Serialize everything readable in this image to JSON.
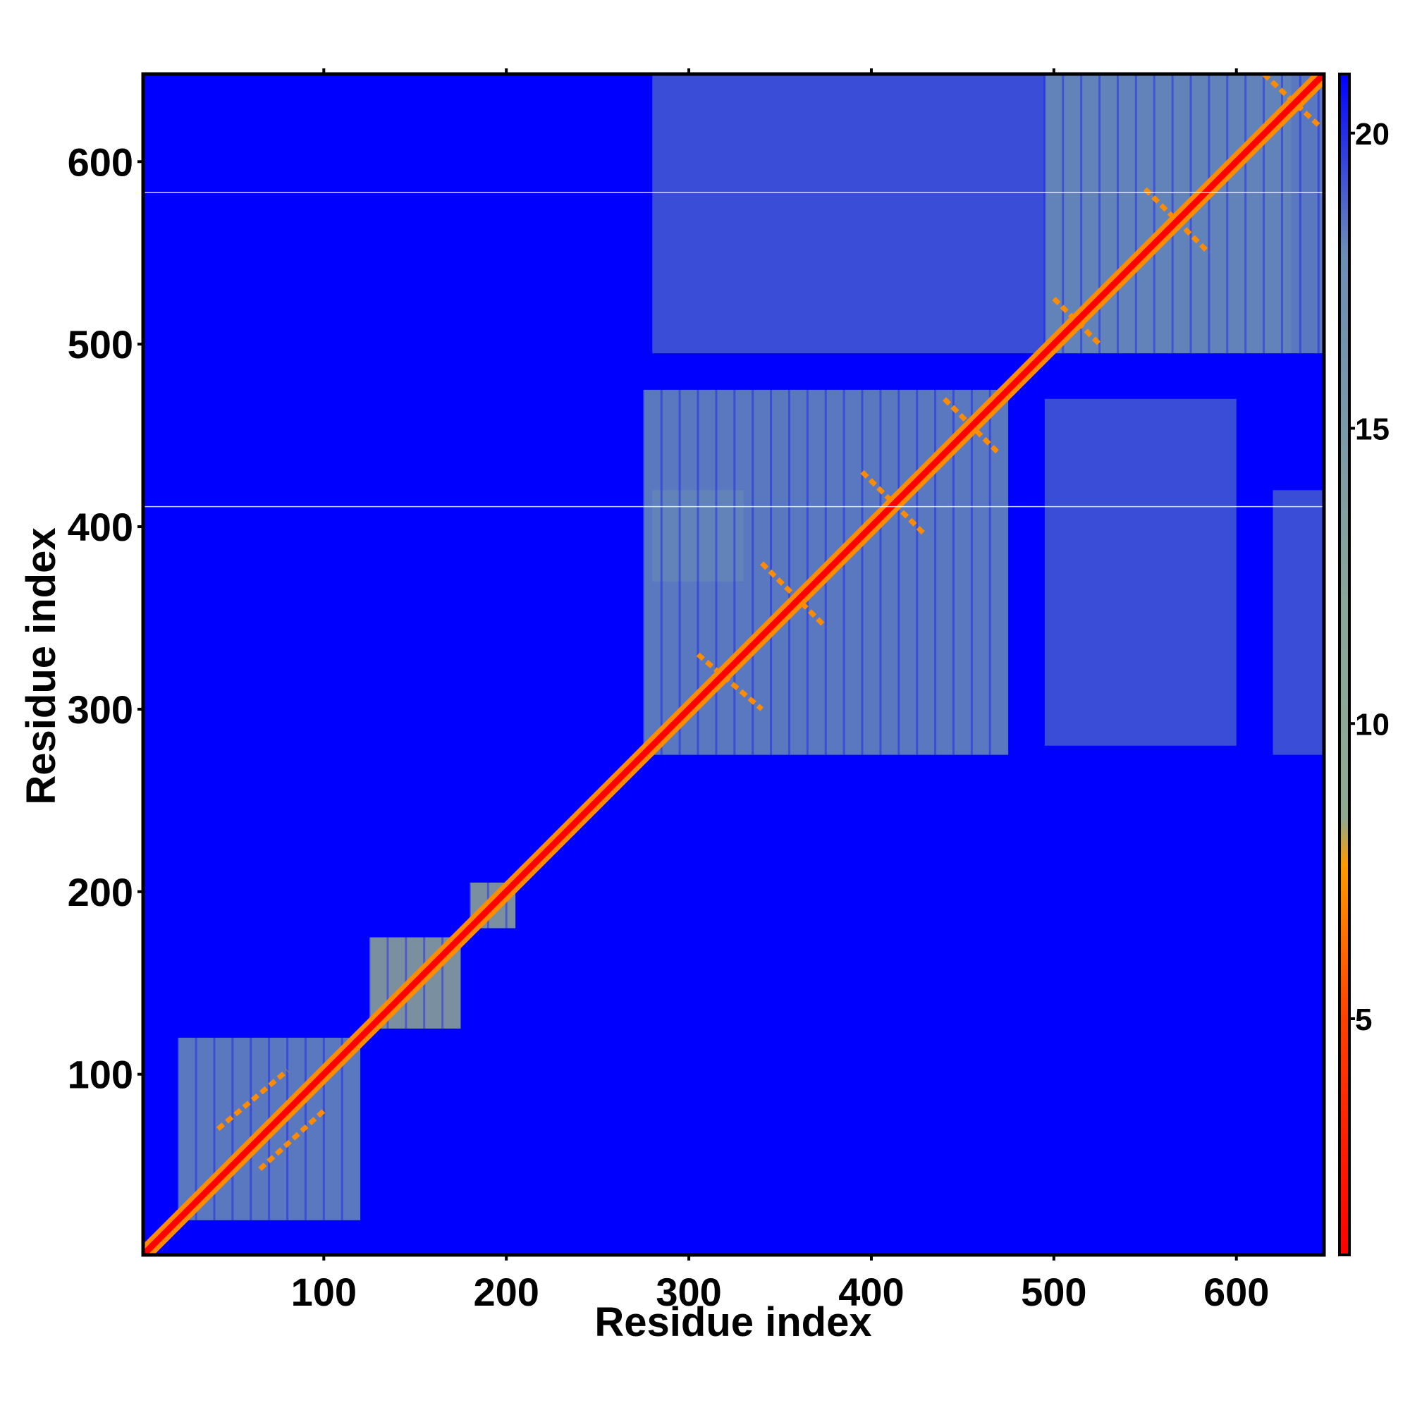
{
  "chart_data": {
    "type": "heatmap",
    "title": "",
    "xlabel": "Residue index",
    "ylabel": "Residue index",
    "xlim": [
      1,
      648
    ],
    "ylim": [
      1,
      648
    ],
    "x_ticks": [
      100,
      200,
      300,
      400,
      500,
      600
    ],
    "y_ticks": [
      100,
      200,
      300,
      400,
      500,
      600
    ],
    "colorbar": {
      "range": [
        1,
        21
      ],
      "ticks": [
        5,
        10,
        15,
        20
      ],
      "colors": {
        "low": "#ff0000",
        "mid_low": "#ff8c00",
        "mid": "#8fa990",
        "high_light": "#6a8db5",
        "high": "#0000ff"
      }
    },
    "background_value": 21,
    "diagonal": {
      "from": 1,
      "to": 648,
      "value": 2
    },
    "domains": [
      {
        "from": 20,
        "to": 120,
        "value": 15
      },
      {
        "from": 125,
        "to": 175,
        "value": 13
      },
      {
        "from": 180,
        "to": 205,
        "value": 13
      },
      {
        "from": 275,
        "to": 475,
        "value": 16
      },
      {
        "from": 495,
        "to": 648,
        "value": 17
      }
    ],
    "interdomain_blocks": [
      {
        "x": [
          280,
          630
        ],
        "y": [
          495,
          648
        ],
        "value": 17
      },
      {
        "x": [
          280,
          330
        ],
        "y": [
          370,
          420
        ],
        "value": 17
      },
      {
        "x": [
          495,
          600
        ],
        "y": [
          280,
          470
        ],
        "value": 17
      },
      {
        "x": [
          620,
          648
        ],
        "y": [
          275,
          420
        ],
        "value": 17
      }
    ],
    "secondary_contacts": [
      {
        "x1": 42,
        "y1": 70,
        "x2": 80,
        "y2": 102,
        "value": 6
      },
      {
        "x1": 65,
        "y1": 48,
        "x2": 100,
        "y2": 80,
        "value": 6
      },
      {
        "x1": 305,
        "y1": 330,
        "x2": 340,
        "y2": 300,
        "value": 6
      },
      {
        "x1": 340,
        "y1": 380,
        "x2": 375,
        "y2": 345,
        "value": 6
      },
      {
        "x1": 395,
        "y1": 430,
        "x2": 430,
        "y2": 395,
        "value": 6
      },
      {
        "x1": 440,
        "y1": 470,
        "x2": 470,
        "y2": 440,
        "value": 6
      },
      {
        "x1": 500,
        "y1": 525,
        "x2": 525,
        "y2": 500,
        "value": 6
      },
      {
        "x1": 550,
        "y1": 585,
        "x2": 585,
        "y2": 550,
        "value": 6
      },
      {
        "x1": 615,
        "y1": 648,
        "x2": 645,
        "y2": 620,
        "value": 6
      }
    ],
    "white_lines_y": [
      411,
      583
    ]
  }
}
